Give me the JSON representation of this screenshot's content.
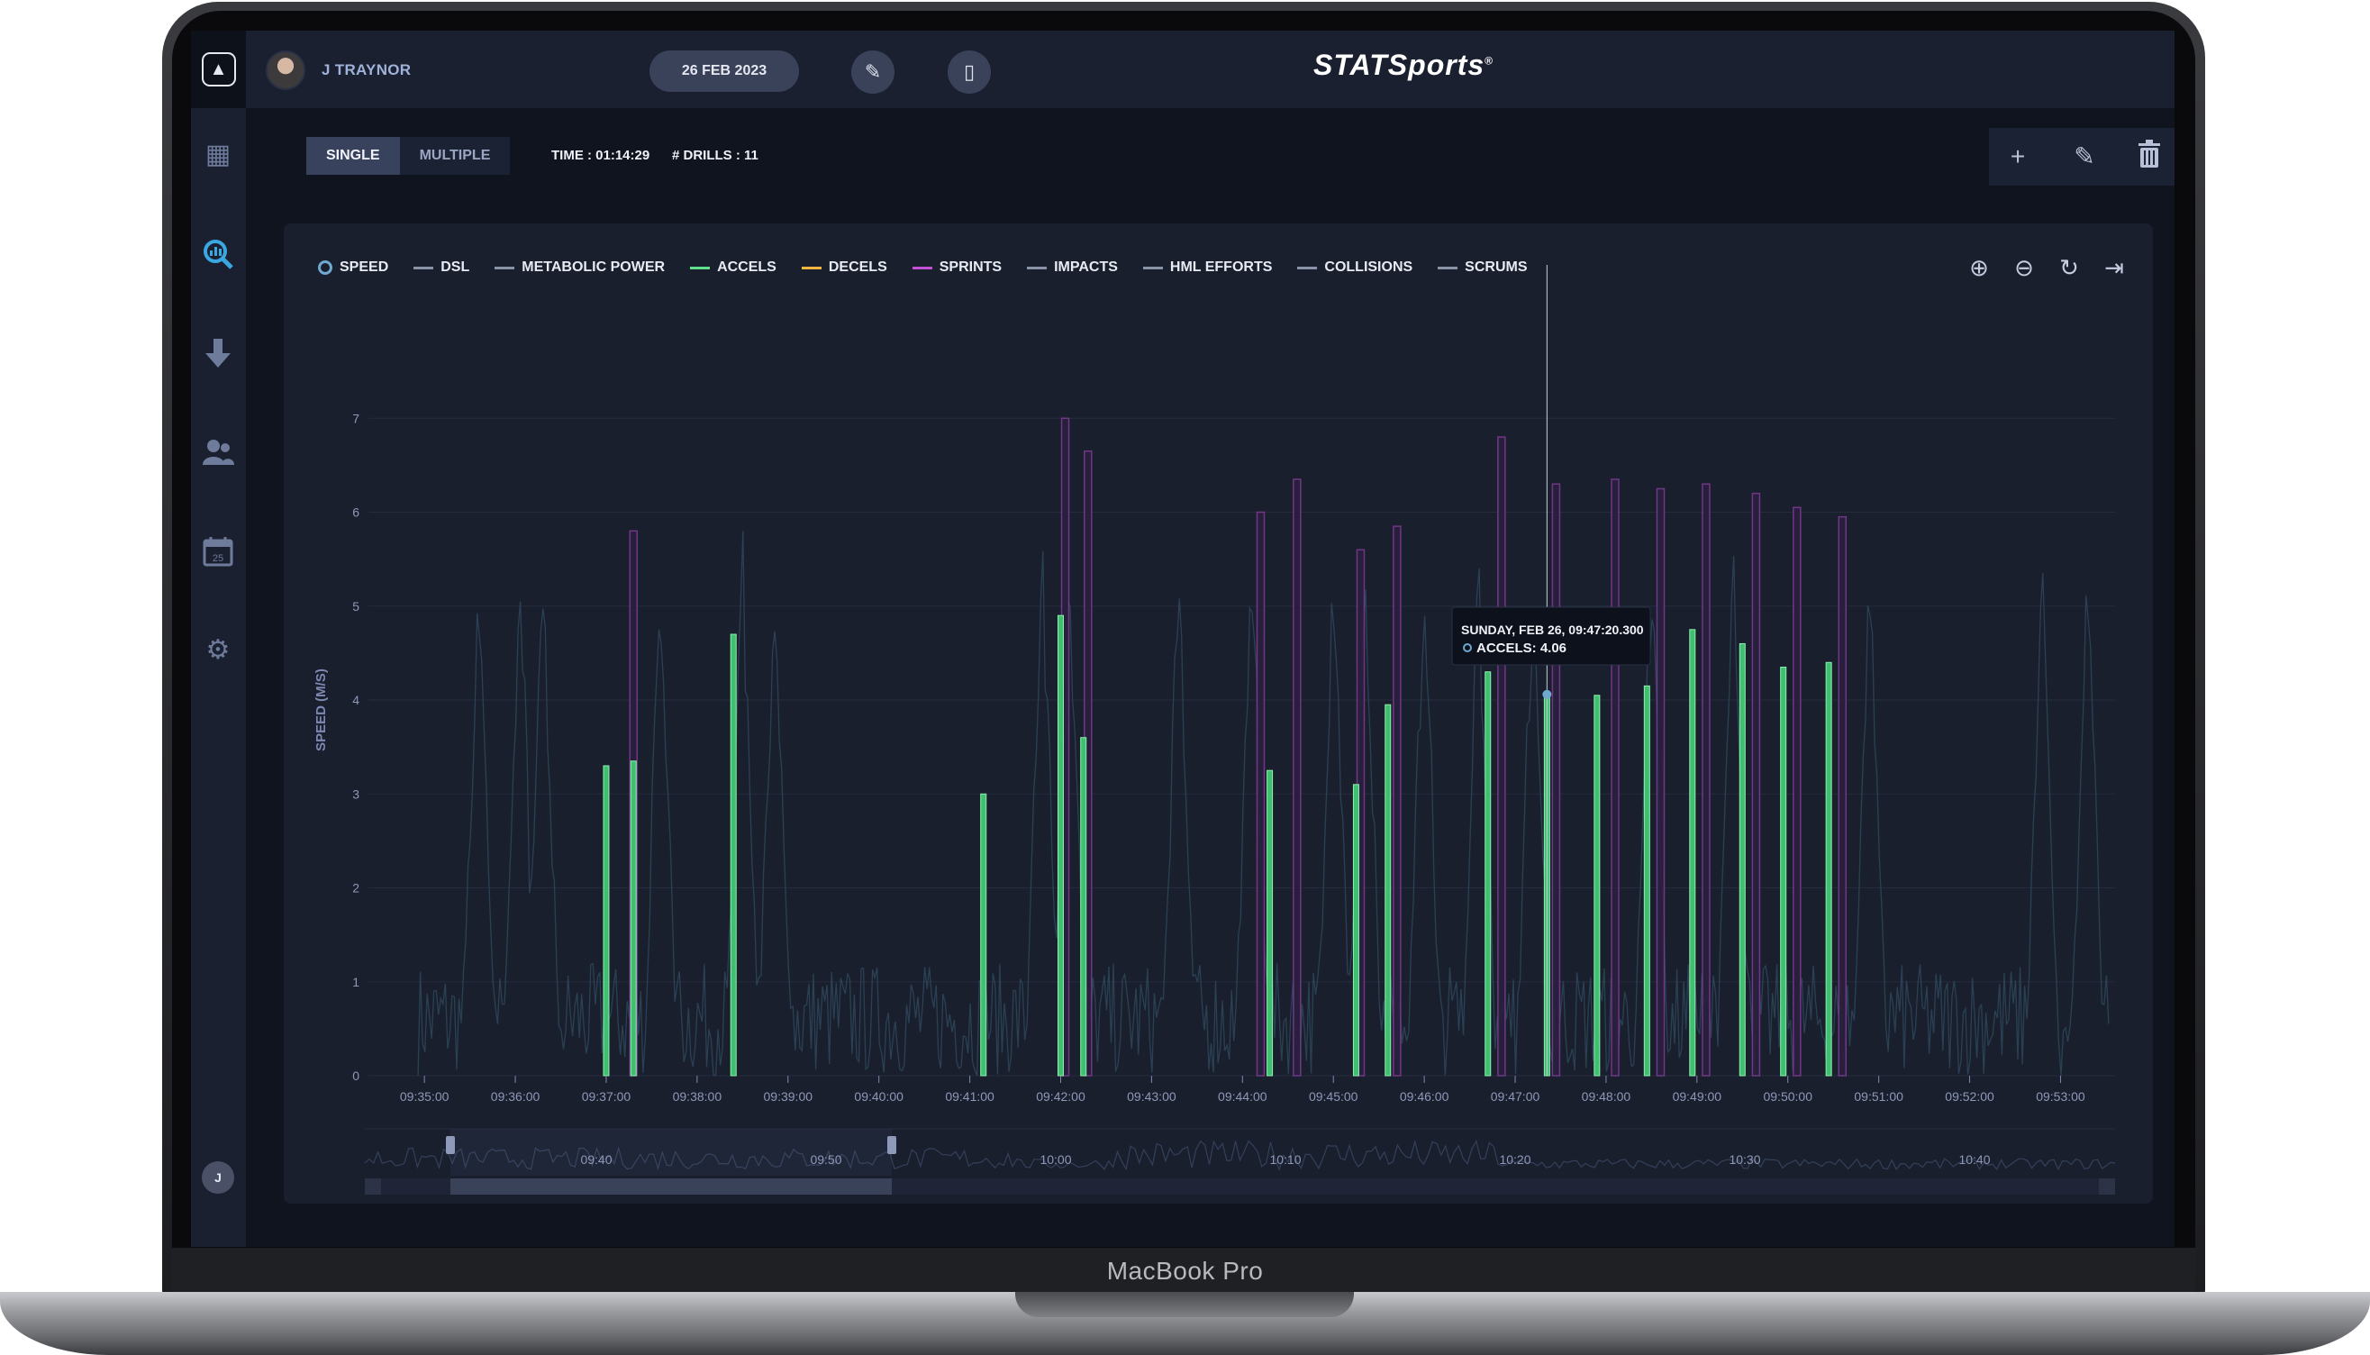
{
  "device": {
    "label": "MacBook Pro"
  },
  "app": {
    "brand": "STATSports",
    "brand_mark": "®",
    "user_name": "J TRAYNOR",
    "session_date": "26 FEB 2023",
    "user_initial": "J",
    "modes": [
      "SINGLE",
      "MULTIPLE"
    ],
    "active_mode": "SINGLE",
    "time_text": "TIME : 01:14:29",
    "drills_text": "# DRILLS : 11"
  },
  "sidebar": {
    "icons": [
      "dashboard-icon",
      "analysis-icon",
      "download-icon",
      "athletes-icon",
      "calendar-icon",
      "settings-icon"
    ],
    "calendar_day": "25"
  },
  "legend": [
    {
      "label": "SPEED",
      "color": "#6fa9d1"
    },
    {
      "label": "DSL",
      "color": "#8b93a8"
    },
    {
      "label": "METABOLIC POWER",
      "color": "#8b93a8"
    },
    {
      "label": "ACCELS",
      "color": "#5ee08d"
    },
    {
      "label": "DECELS",
      "color": "#f5b342"
    },
    {
      "label": "SPRINTS",
      "color": "#c24fd6"
    },
    {
      "label": "IMPACTS",
      "color": "#8b93a8"
    },
    {
      "label": "HML EFFORTS",
      "color": "#8b93a8"
    },
    {
      "label": "COLLISIONS",
      "color": "#8b93a8"
    },
    {
      "label": "SCRUMS",
      "color": "#8b93a8"
    }
  ],
  "tooltip": {
    "title": "SUNDAY, FEB 26, 09:47:20.300",
    "line": "ACCELS: 4.06"
  },
  "chart_data": {
    "type": "bar",
    "ylabel": "SPEED (M/S)",
    "xlabel": "",
    "ylim": [
      0,
      8
    ],
    "y_ticks": [
      0,
      1,
      2,
      3,
      4,
      5,
      6,
      7
    ],
    "x_ticks": [
      "09:35:00",
      "09:36:00",
      "09:37:00",
      "09:38:00",
      "09:39:00",
      "09:40:00",
      "09:41:00",
      "09:42:00",
      "09:43:00",
      "09:44:00",
      "09:45:00",
      "09:46:00",
      "09:47:00",
      "09:48:00",
      "09:49:00",
      "09:50:00",
      "09:51:00",
      "09:52:00",
      "09:53:00"
    ],
    "x_range_minutes": [
      34.83,
      53.6
    ],
    "series": [
      {
        "name": "ACCELS",
        "color": "#5ee08d",
        "points": [
          {
            "t": 37.0,
            "v": 3.3
          },
          {
            "t": 37.3,
            "v": 3.35
          },
          {
            "t": 38.4,
            "v": 4.7
          },
          {
            "t": 41.15,
            "v": 3.0
          },
          {
            "t": 42.0,
            "v": 4.9
          },
          {
            "t": 42.25,
            "v": 3.6
          },
          {
            "t": 44.3,
            "v": 3.25
          },
          {
            "t": 45.25,
            "v": 3.1
          },
          {
            "t": 45.6,
            "v": 3.95
          },
          {
            "t": 46.7,
            "v": 4.3
          },
          {
            "t": 47.35,
            "v": 4.06
          },
          {
            "t": 47.9,
            "v": 4.05
          },
          {
            "t": 48.45,
            "v": 4.15
          },
          {
            "t": 48.95,
            "v": 4.75
          },
          {
            "t": 49.5,
            "v": 4.6
          },
          {
            "t": 49.95,
            "v": 4.35
          },
          {
            "t": 50.45,
            "v": 4.4
          }
        ]
      },
      {
        "name": "SPRINTS",
        "color": "#c24fd6",
        "points": [
          {
            "t": 37.3,
            "v": 5.8
          },
          {
            "t": 42.05,
            "v": 7.0
          },
          {
            "t": 42.3,
            "v": 6.65
          },
          {
            "t": 44.2,
            "v": 6.0
          },
          {
            "t": 44.6,
            "v": 6.35
          },
          {
            "t": 45.3,
            "v": 5.6
          },
          {
            "t": 45.7,
            "v": 5.85
          },
          {
            "t": 46.85,
            "v": 6.8
          },
          {
            "t": 47.45,
            "v": 6.3
          },
          {
            "t": 48.1,
            "v": 6.35
          },
          {
            "t": 48.6,
            "v": 6.25
          },
          {
            "t": 49.1,
            "v": 6.3
          },
          {
            "t": 49.65,
            "v": 6.2
          },
          {
            "t": 50.1,
            "v": 6.05
          },
          {
            "t": 50.6,
            "v": 5.95
          }
        ]
      }
    ],
    "navigator": {
      "x_ticks": [
        "09:40",
        "09:50",
        "10:00",
        "10:10",
        "10:20",
        "10:30",
        "10:40"
      ],
      "selected_range": [
        "09:35:00",
        "09:54:00"
      ]
    }
  }
}
